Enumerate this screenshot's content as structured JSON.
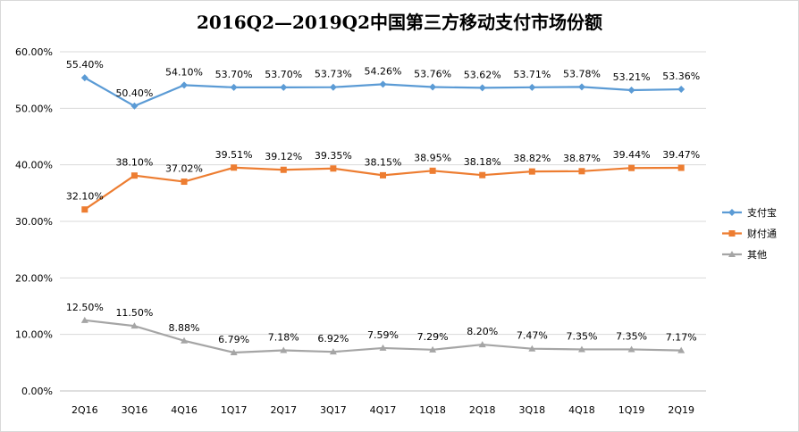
{
  "chart_data": {
    "type": "line",
    "title": "2016Q2—2019Q2中国第三方移动支付市场份额",
    "categories": [
      "2Q16",
      "3Q16",
      "4Q16",
      "1Q17",
      "2Q17",
      "3Q17",
      "4Q17",
      "1Q18",
      "2Q18",
      "3Q18",
      "4Q18",
      "1Q19",
      "2Q19"
    ],
    "ylim": [
      0,
      60
    ],
    "yticks": [
      "0.00%",
      "10.00%",
      "20.00%",
      "30.00%",
      "40.00%",
      "50.00%",
      "60.00%"
    ],
    "grid": true,
    "legend_position": "right",
    "series": [
      {
        "name": "支付宝",
        "color": "#5b9bd5",
        "marker": "diamond",
        "values": [
          55.4,
          50.4,
          54.1,
          53.7,
          53.7,
          53.73,
          54.26,
          53.76,
          53.62,
          53.71,
          53.78,
          53.21,
          53.36
        ],
        "labels": [
          "55.40%",
          "50.40%",
          "54.10%",
          "53.70%",
          "53.70%",
          "53.73%",
          "54.26%",
          "53.76%",
          "53.62%",
          "53.71%",
          "53.78%",
          "53.21%",
          "53.36%"
        ]
      },
      {
        "name": "财付通",
        "color": "#ed7d31",
        "marker": "square",
        "values": [
          32.1,
          38.1,
          37.02,
          39.51,
          39.12,
          39.35,
          38.15,
          38.95,
          38.18,
          38.82,
          38.87,
          39.44,
          39.47
        ],
        "labels": [
          "32.10%",
          "38.10%",
          "37.02%",
          "39.51%",
          "39.12%",
          "39.35%",
          "38.15%",
          "38.95%",
          "38.18%",
          "38.82%",
          "38.87%",
          "39.44%",
          "39.47%"
        ]
      },
      {
        "name": "其他",
        "color": "#a5a5a5",
        "marker": "triangle",
        "values": [
          12.5,
          11.5,
          8.88,
          6.79,
          7.18,
          6.92,
          7.59,
          7.29,
          8.2,
          7.47,
          7.35,
          7.35,
          7.17
        ],
        "labels": [
          "12.50%",
          "11.50%",
          "8.88%",
          "6.79%",
          "7.18%",
          "6.92%",
          "7.59%",
          "7.29%",
          "8.20%",
          "7.47%",
          "7.35%",
          "7.35%",
          "7.17%"
        ]
      }
    ]
  }
}
